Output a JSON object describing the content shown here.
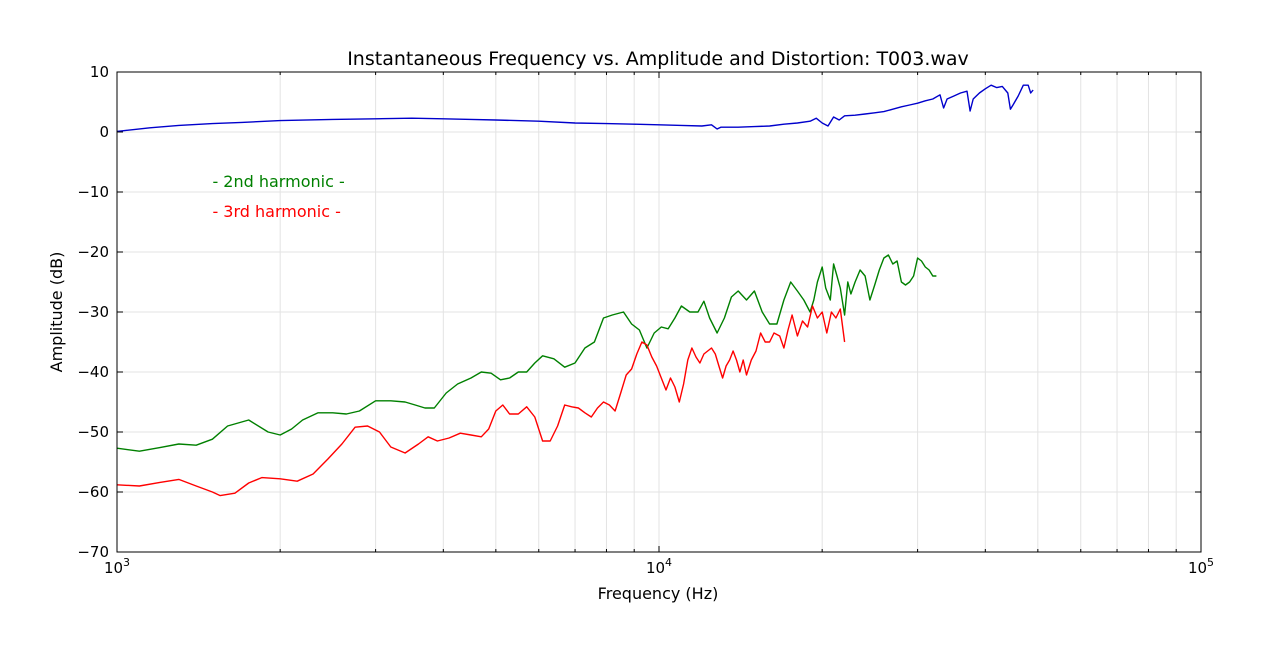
{
  "chart_data": {
    "type": "line",
    "title": "Instantaneous Frequency vs. Amplitude and Distortion: T003.wav",
    "xlabel": "Frequency (Hz)",
    "ylabel": "Amplitude (dB)",
    "xscale": "log",
    "xlim": [
      1000,
      100000
    ],
    "ylim": [
      -70,
      10
    ],
    "grid": true,
    "x_ticks": [
      {
        "value": 1000,
        "base": "10",
        "exp": "3"
      },
      {
        "value": 10000,
        "base": "10",
        "exp": "4"
      },
      {
        "value": 100000,
        "base": "10",
        "exp": "5"
      }
    ],
    "y_ticks": [
      {
        "value": 10,
        "label": "10"
      },
      {
        "value": 0,
        "label": "0"
      },
      {
        "value": -10,
        "label": "−10"
      },
      {
        "value": -20,
        "label": "−20"
      },
      {
        "value": -30,
        "label": "−30"
      },
      {
        "value": -40,
        "label": "−40"
      },
      {
        "value": -50,
        "label": "−50"
      },
      {
        "value": -60,
        "label": "−60"
      },
      {
        "value": -70,
        "label": "−70"
      }
    ],
    "annotations": [
      {
        "text": "- 2nd harmonic -",
        "color": "#008000",
        "x": 1500,
        "y": -9.2
      },
      {
        "text": "- 3rd harmonic -",
        "color": "#ff0000",
        "x": 1500,
        "y": -14.2
      }
    ],
    "series": [
      {
        "color": "#0000cc",
        "points": [
          [
            1000,
            0.1
          ],
          [
            1150,
            0.7
          ],
          [
            1300,
            1.1
          ],
          [
            1500,
            1.4
          ],
          [
            1700,
            1.6
          ],
          [
            2000,
            1.9
          ],
          [
            2500,
            2.1
          ],
          [
            3000,
            2.2
          ],
          [
            3500,
            2.3
          ],
          [
            4000,
            2.2
          ],
          [
            4500,
            2.1
          ],
          [
            5000,
            2.0
          ],
          [
            6000,
            1.8
          ],
          [
            7000,
            1.5
          ],
          [
            8000,
            1.4
          ],
          [
            9000,
            1.3
          ],
          [
            10000,
            1.2
          ],
          [
            11000,
            1.1
          ],
          [
            12000,
            1.0
          ],
          [
            12500,
            1.2
          ],
          [
            12800,
            0.5
          ],
          [
            13000,
            0.8
          ],
          [
            14000,
            0.8
          ],
          [
            15000,
            0.9
          ],
          [
            16000,
            1.0
          ],
          [
            17000,
            1.3
          ],
          [
            18000,
            1.5
          ],
          [
            19000,
            1.8
          ],
          [
            19500,
            2.3
          ],
          [
            20000,
            1.5
          ],
          [
            20500,
            1.0
          ],
          [
            21000,
            2.5
          ],
          [
            21500,
            2.0
          ],
          [
            22000,
            2.7
          ],
          [
            23000,
            2.8
          ],
          [
            24000,
            3.0
          ],
          [
            25000,
            3.2
          ],
          [
            26000,
            3.4
          ],
          [
            27000,
            3.8
          ],
          [
            28000,
            4.2
          ],
          [
            29000,
            4.5
          ],
          [
            30000,
            4.8
          ],
          [
            31000,
            5.2
          ],
          [
            32000,
            5.5
          ],
          [
            33000,
            6.2
          ],
          [
            33500,
            4.0
          ],
          [
            34000,
            5.5
          ],
          [
            35000,
            6.0
          ],
          [
            36000,
            6.5
          ],
          [
            37000,
            6.8
          ],
          [
            37500,
            3.5
          ],
          [
            38000,
            5.5
          ],
          [
            39000,
            6.5
          ],
          [
            40000,
            7.2
          ],
          [
            41000,
            7.8
          ],
          [
            42000,
            7.4
          ],
          [
            43000,
            7.6
          ],
          [
            44000,
            6.5
          ],
          [
            44500,
            3.8
          ],
          [
            45000,
            4.5
          ],
          [
            46000,
            6.0
          ],
          [
            47000,
            7.8
          ],
          [
            48000,
            7.8
          ],
          [
            48500,
            6.5
          ],
          [
            49000,
            7.0
          ]
        ]
      },
      {
        "color": "#008000",
        "points": [
          [
            1000,
            -52.7
          ],
          [
            1100,
            -53.2
          ],
          [
            1200,
            -52.6
          ],
          [
            1300,
            -52.0
          ],
          [
            1400,
            -52.2
          ],
          [
            1500,
            -51.2
          ],
          [
            1600,
            -49.0
          ],
          [
            1750,
            -48.0
          ],
          [
            1900,
            -50.0
          ],
          [
            2000,
            -50.5
          ],
          [
            2100,
            -49.5
          ],
          [
            2200,
            -48.0
          ],
          [
            2350,
            -46.8
          ],
          [
            2500,
            -46.8
          ],
          [
            2650,
            -47.0
          ],
          [
            2800,
            -46.5
          ],
          [
            3000,
            -44.8
          ],
          [
            3200,
            -44.8
          ],
          [
            3400,
            -45.0
          ],
          [
            3550,
            -45.5
          ],
          [
            3700,
            -46.0
          ],
          [
            3850,
            -46.0
          ],
          [
            4050,
            -43.5
          ],
          [
            4250,
            -42.0
          ],
          [
            4500,
            -41.0
          ],
          [
            4700,
            -40.0
          ],
          [
            4900,
            -40.2
          ],
          [
            5100,
            -41.3
          ],
          [
            5300,
            -41.0
          ],
          [
            5500,
            -40.0
          ],
          [
            5700,
            -40.0
          ],
          [
            5900,
            -38.5
          ],
          [
            6100,
            -37.3
          ],
          [
            6400,
            -37.8
          ],
          [
            6700,
            -39.2
          ],
          [
            7000,
            -38.5
          ],
          [
            7300,
            -36.0
          ],
          [
            7600,
            -35.0
          ],
          [
            7900,
            -31.0
          ],
          [
            8200,
            -30.5
          ],
          [
            8600,
            -30.0
          ],
          [
            8900,
            -32.0
          ],
          [
            9200,
            -33.0
          ],
          [
            9500,
            -36.0
          ],
          [
            9800,
            -33.5
          ],
          [
            10100,
            -32.5
          ],
          [
            10400,
            -32.8
          ],
          [
            10700,
            -31.0
          ],
          [
            11000,
            -29.0
          ],
          [
            11400,
            -30.0
          ],
          [
            11800,
            -30.0
          ],
          [
            12100,
            -28.2
          ],
          [
            12400,
            -31.0
          ],
          [
            12800,
            -33.5
          ],
          [
            13200,
            -31.0
          ],
          [
            13600,
            -27.5
          ],
          [
            14000,
            -26.5
          ],
          [
            14500,
            -28.0
          ],
          [
            15000,
            -26.5
          ],
          [
            15500,
            -30.0
          ],
          [
            16000,
            -32.0
          ],
          [
            16500,
            -32.0
          ],
          [
            17000,
            -28.0
          ],
          [
            17500,
            -25.0
          ],
          [
            18000,
            -26.5
          ],
          [
            18500,
            -28.0
          ],
          [
            19000,
            -30.0
          ],
          [
            19300,
            -28.0
          ],
          [
            19600,
            -25.0
          ],
          [
            20000,
            -22.5
          ],
          [
            20300,
            -26.0
          ],
          [
            20700,
            -28.0
          ],
          [
            21000,
            -22.0
          ],
          [
            21300,
            -24.0
          ],
          [
            21600,
            -26.0
          ],
          [
            22000,
            -30.5
          ],
          [
            22300,
            -25.0
          ],
          [
            22600,
            -27.0
          ],
          [
            23000,
            -25.0
          ],
          [
            23500,
            -23.0
          ],
          [
            24000,
            -24.0
          ],
          [
            24500,
            -28.0
          ],
          [
            25000,
            -25.5
          ],
          [
            25500,
            -23.0
          ],
          [
            26000,
            -21.0
          ],
          [
            26500,
            -20.5
          ],
          [
            27000,
            -22.0
          ],
          [
            27500,
            -21.5
          ],
          [
            28000,
            -25.0
          ],
          [
            28500,
            -25.5
          ],
          [
            29000,
            -25.0
          ],
          [
            29500,
            -24.0
          ],
          [
            30000,
            -21.0
          ],
          [
            30500,
            -21.5
          ],
          [
            31000,
            -22.5
          ],
          [
            31500,
            -23.0
          ],
          [
            32000,
            -24.0
          ],
          [
            32500,
            -24.0
          ]
        ]
      },
      {
        "color": "#ff0000",
        "points": [
          [
            1000,
            -58.8
          ],
          [
            1100,
            -59.0
          ],
          [
            1200,
            -58.4
          ],
          [
            1300,
            -57.9
          ],
          [
            1400,
            -59.0
          ],
          [
            1500,
            -60.0
          ],
          [
            1550,
            -60.6
          ],
          [
            1650,
            -60.2
          ],
          [
            1750,
            -58.5
          ],
          [
            1850,
            -57.6
          ],
          [
            2000,
            -57.8
          ],
          [
            2150,
            -58.2
          ],
          [
            2300,
            -57.0
          ],
          [
            2450,
            -54.5
          ],
          [
            2600,
            -52.0
          ],
          [
            2750,
            -49.2
          ],
          [
            2900,
            -49.0
          ],
          [
            3050,
            -50.0
          ],
          [
            3200,
            -52.5
          ],
          [
            3400,
            -53.5
          ],
          [
            3600,
            -52.0
          ],
          [
            3750,
            -50.8
          ],
          [
            3900,
            -51.5
          ],
          [
            4100,
            -51.0
          ],
          [
            4300,
            -50.2
          ],
          [
            4500,
            -50.5
          ],
          [
            4700,
            -50.8
          ],
          [
            4850,
            -49.5
          ],
          [
            5000,
            -46.5
          ],
          [
            5150,
            -45.5
          ],
          [
            5300,
            -47.0
          ],
          [
            5500,
            -47.0
          ],
          [
            5700,
            -45.8
          ],
          [
            5900,
            -47.5
          ],
          [
            6100,
            -51.5
          ],
          [
            6300,
            -51.5
          ],
          [
            6500,
            -49.0
          ],
          [
            6700,
            -45.5
          ],
          [
            6900,
            -45.8
          ],
          [
            7100,
            -46.0
          ],
          [
            7300,
            -46.8
          ],
          [
            7500,
            -47.5
          ],
          [
            7700,
            -46.0
          ],
          [
            7900,
            -45.0
          ],
          [
            8100,
            -45.5
          ],
          [
            8300,
            -46.5
          ],
          [
            8500,
            -43.5
          ],
          [
            8700,
            -40.5
          ],
          [
            8900,
            -39.5
          ],
          [
            9100,
            -37.0
          ],
          [
            9300,
            -35.0
          ],
          [
            9500,
            -35.5
          ],
          [
            9700,
            -37.5
          ],
          [
            9900,
            -39.0
          ],
          [
            10100,
            -41.0
          ],
          [
            10300,
            -43.0
          ],
          [
            10500,
            -41.0
          ],
          [
            10700,
            -42.5
          ],
          [
            10900,
            -45.0
          ],
          [
            11100,
            -42.0
          ],
          [
            11300,
            -38.0
          ],
          [
            11500,
            -36.0
          ],
          [
            11700,
            -37.5
          ],
          [
            11900,
            -38.5
          ],
          [
            12100,
            -37.0
          ],
          [
            12300,
            -36.5
          ],
          [
            12500,
            -36.0
          ],
          [
            12700,
            -37.0
          ],
          [
            12900,
            -39.0
          ],
          [
            13100,
            -41.0
          ],
          [
            13300,
            -39.0
          ],
          [
            13500,
            -38.0
          ],
          [
            13700,
            -36.5
          ],
          [
            13900,
            -38.0
          ],
          [
            14100,
            -40.0
          ],
          [
            14300,
            -38.0
          ],
          [
            14500,
            -40.5
          ],
          [
            14800,
            -38.0
          ],
          [
            15100,
            -36.5
          ],
          [
            15400,
            -33.5
          ],
          [
            15700,
            -35.0
          ],
          [
            16000,
            -35.0
          ],
          [
            16300,
            -33.5
          ],
          [
            16700,
            -34.0
          ],
          [
            17000,
            -36.0
          ],
          [
            17300,
            -33.0
          ],
          [
            17600,
            -30.5
          ],
          [
            18000,
            -34.0
          ],
          [
            18400,
            -31.5
          ],
          [
            18800,
            -32.5
          ],
          [
            19200,
            -29.0
          ],
          [
            19600,
            -31.0
          ],
          [
            20000,
            -30.0
          ],
          [
            20400,
            -33.5
          ],
          [
            20800,
            -30.0
          ],
          [
            21200,
            -31.0
          ],
          [
            21600,
            -29.5
          ],
          [
            22000,
            -35.0
          ]
        ]
      }
    ]
  }
}
